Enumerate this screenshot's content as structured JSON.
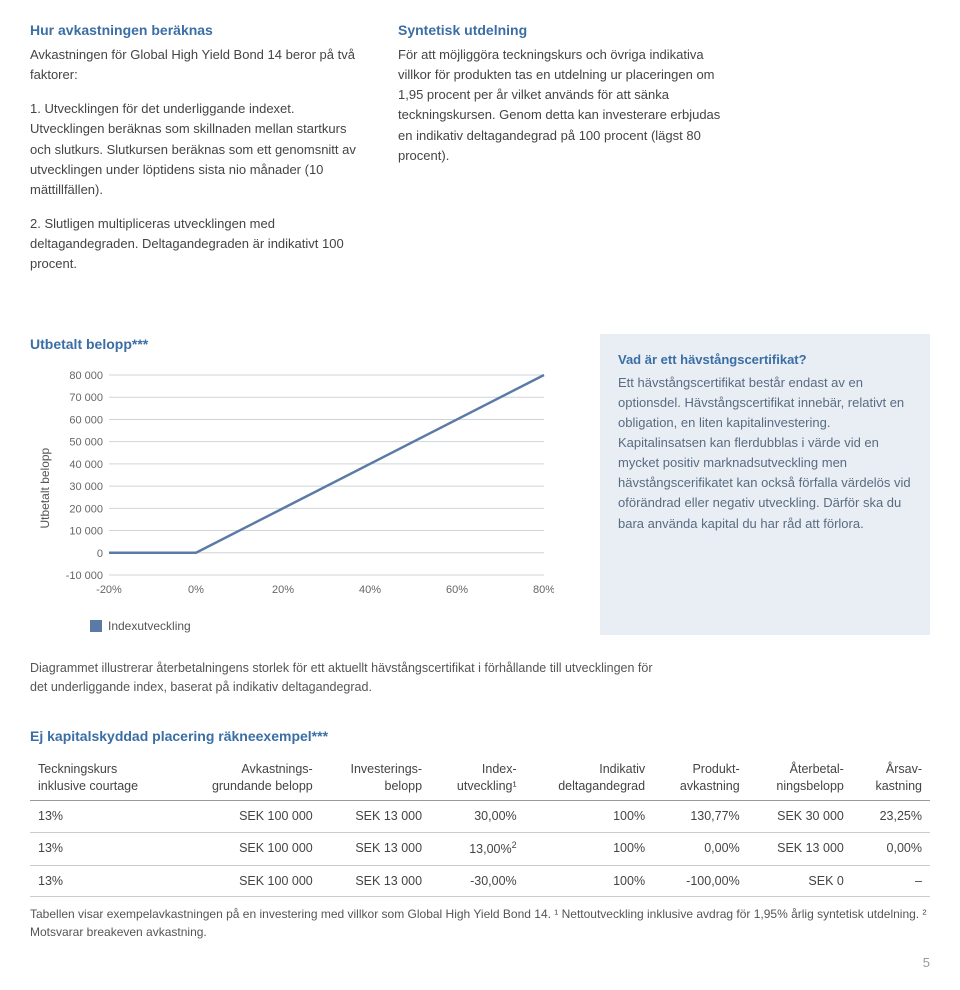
{
  "left_col": {
    "heading": "Hur avkastningen beräknas",
    "p1": "Avkastningen för Global High Yield Bond 14 beror på två faktorer:",
    "p2": "1. Utvecklingen för det underliggande indexet. Utvecklingen beräknas som skillnaden mellan startkurs och slutkurs. Slutkursen beräknas som ett genomsnitt av utvecklingen under löptidens sista nio månader (10 mättillfällen).",
    "p3": "2. Slutligen multipliceras utvecklingen med deltagandegraden. Deltagandegraden är indikativt 100 procent."
  },
  "right_col": {
    "heading": "Syntetisk utdelning",
    "p1": "För att möjliggöra teckningskurs och övriga indikativa villkor för produkten tas en utdelning ur placeringen om 1,95 procent per år vilket används för att sänka teckningskursen. Genom detta kan investerare erbjudas en indikativ deltagandegrad på 100 procent (lägst 80 procent)."
  },
  "chart": {
    "title": "Utbetalt belopp***",
    "y_axis_label": "Utbetalt belopp",
    "legend": "Indexutveckling",
    "y_ticks": [
      "80 000",
      "70 000",
      "60 000",
      "50 000",
      "40 000",
      "30 000",
      "20 000",
      "10 000",
      "0",
      "-10 000"
    ],
    "x_ticks": [
      "-20%",
      "0%",
      "20%",
      "40%",
      "60%",
      "80%"
    ],
    "line_points": [
      {
        "x": -20,
        "y": 0
      },
      {
        "x": 0,
        "y": 0
      },
      {
        "x": 80,
        "y": 80000
      }
    ],
    "line_color": "#5b7ba6",
    "grid_color": "#cfd4da",
    "axis_text_color": "#666666",
    "plot_bg": "#ffffff",
    "y_min": -10000,
    "y_max": 80000,
    "x_min": -20,
    "x_max": 80
  },
  "infobox": {
    "q": "Vad är ett hävstångscertifikat?",
    "body": "Ett hävstångscertifikat består endast av en optionsdel. Hävstångscertifikat innebär, relativt en obligation, en liten kapitalinvestering. Kapitalinsatsen kan flerdubblas i värde vid en mycket positiv marknadsutveckling men hävstångscerifikatet kan också förfalla värdelös vid oförändrad eller negativ utveckling. Därför ska du bara använda kapital du har råd att förlora."
  },
  "chart_caption": "Diagrammet illustrerar återbetalningens storlek för ett aktuellt hävstångscertifikat i förhållande till utvecklingen för det underliggande index, baserat på indikativ deltagandegrad.",
  "table": {
    "title": "Ej kapitalskyddad placering räkneexempel***",
    "headers": {
      "h1a": "Teckningskurs",
      "h1b": "inklusive courtage",
      "h2a": "Avkastnings-",
      "h2b": "grundande belopp",
      "h3a": "Investerings-",
      "h3b": "belopp",
      "h4a": "Index-",
      "h4b": "utveckling¹",
      "h5a": "Indikativ",
      "h5b": "deltagandegrad",
      "h6a": "Produkt-",
      "h6b": "avkastning",
      "h7a": "Återbetal-",
      "h7b": "ningsbelopp",
      "h8a": "Årsav-",
      "h8b": "kastning"
    },
    "rows": [
      {
        "c1": "13%",
        "c2": "SEK 100 000",
        "c3": "SEK 13 000",
        "c4": "30,00%",
        "c5": "100%",
        "c6": "130,77%",
        "c7": "SEK 30 000",
        "c8": "23,25%"
      },
      {
        "c1": "13%",
        "c2": "SEK 100 000",
        "c3": "SEK 13 000",
        "c4": "13,00%²",
        "c5": "100%",
        "c6": "0,00%",
        "c7": "SEK 13 000",
        "c8": "0,00%"
      },
      {
        "c1": "13%",
        "c2": "SEK 100 000",
        "c3": "SEK 13 000",
        "c4": "-30,00%",
        "c5": "100%",
        "c6": "-100,00%",
        "c7": "SEK 0",
        "c8": "–"
      }
    ],
    "footnote": "Tabellen visar exempelavkastningen på en investering med villkor som Global High Yield Bond 14. ¹ Nettoutveckling inklusive avdrag för 1,95% årlig syntetisk utdelning. ² Motsvarar breakeven avkastning."
  },
  "page_number": "5"
}
